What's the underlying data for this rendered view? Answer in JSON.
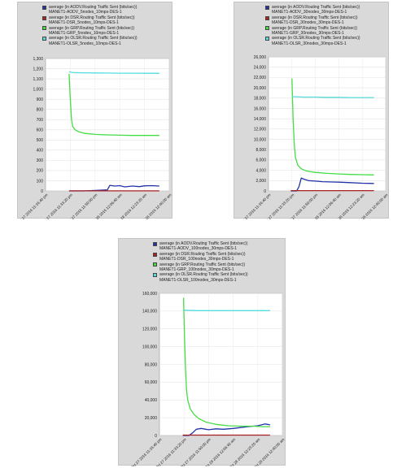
{
  "chart_data": [
    {
      "type": "line",
      "title": "",
      "xlabel": "",
      "ylabel": "",
      "ylim": [
        0,
        1300
      ],
      "yticks": [
        0,
        100,
        200,
        300,
        400,
        500,
        600,
        700,
        800,
        900,
        1000,
        1100,
        1200,
        1300
      ],
      "ytick_labels": [
        "0",
        "100",
        "200",
        "300",
        "400",
        "500",
        "600",
        "700",
        "800",
        "900",
        "1,000",
        "1,100",
        "1,200",
        "1,300"
      ],
      "xtick_labels": [
        "Oct 27 2016 11:16:40 pm",
        "Oct 27 2016 11:33:20 pm",
        "Oct 27 2016 11:50:00 pm",
        "Oct 28 2016 12:06:40 am",
        "Oct 28 2016 12:23:20 am",
        "Oct 28 2016 12:40:00 am"
      ],
      "xlim": [
        0,
        5
      ],
      "grid": true,
      "legend_position": "top",
      "series": [
        {
          "name": "average (in AODV.Routing Traffic Sent (bits/sec))",
          "run": "MANET1-AODV_5nodes_10mps-DES-1",
          "color": "#2233aa",
          "x": [
            0.95,
            1.5,
            2.0,
            2.5,
            2.6,
            2.8,
            3.0,
            3.2,
            3.5,
            3.8,
            4.0,
            4.3,
            4.6
          ],
          "y": [
            0,
            0,
            5,
            10,
            55,
            48,
            52,
            40,
            48,
            42,
            50,
            52,
            48
          ]
        },
        {
          "name": "average (in DSR.Routing Traffic Sent (bits/sec))",
          "run": "MANET1-DSR_5nodes_10mps-DES-1",
          "color": "#aa2222",
          "x": [
            0.95,
            4.6
          ],
          "y": [
            1,
            1
          ]
        },
        {
          "name": "average (in GRP.Routing Traffic Sent (bits/sec))",
          "run": "MANET1-GRP_5nodes_10mps-DES-1",
          "color": "#44dd44",
          "x": [
            0.95,
            1.0,
            1.05,
            1.1,
            1.2,
            1.35,
            1.6,
            2.0,
            2.5,
            3.0,
            3.5,
            4.0,
            4.6
          ],
          "y": [
            1150,
            900,
            700,
            630,
            600,
            580,
            565,
            555,
            550,
            547,
            545,
            545,
            545
          ]
        },
        {
          "name": "average (in OLSR.Routing Traffic Sent (bits/sec))",
          "run": "MANET1-OLSR_5nodes_10mps-DES-1",
          "color": "#55dddd",
          "x": [
            0.95,
            1.1,
            1.5,
            2.0,
            2.5,
            3.0,
            3.5,
            4.0,
            4.6
          ],
          "y": [
            1170,
            1162,
            1160,
            1158,
            1157,
            1156,
            1156,
            1155,
            1155
          ]
        }
      ]
    },
    {
      "type": "line",
      "title": "",
      "xlabel": "",
      "ylabel": "",
      "ylim": [
        0,
        26000
      ],
      "yticks": [
        0,
        2000,
        4000,
        6000,
        8000,
        10000,
        12000,
        14000,
        16000,
        18000,
        20000,
        22000,
        24000,
        26000
      ],
      "ytick_labels": [
        "0",
        "2,000",
        "4,000",
        "6,000",
        "8,000",
        "10,000",
        "12,000",
        "14,000",
        "16,000",
        "18,000",
        "20,000",
        "22,000",
        "24,000",
        "26,000"
      ],
      "xtick_labels": [
        "Oct 27 2016 11:16:40 pm",
        "Oct 27 2016 11:33:20 pm",
        "Oct 27 2016 11:50:00 pm",
        "Oct 28 2016 12:06:40 am",
        "Oct 28 2016 12:23:20 am",
        "Oct 28 2016 12:40:00 am"
      ],
      "xlim": [
        0,
        5
      ],
      "grid": true,
      "legend_position": "top",
      "series": [
        {
          "name": "average (in AODV.Routing Traffic Sent (bits/sec))",
          "run": "MANET1-AODV_30nodes_30mps-DES-1",
          "color": "#2233aa",
          "x": [
            0.95,
            1.2,
            1.3,
            1.4,
            1.5,
            1.7,
            2.0,
            2.3,
            2.6,
            3.0,
            3.5,
            4.0,
            4.5
          ],
          "y": [
            0,
            0,
            800,
            2500,
            2300,
            2000,
            1900,
            1800,
            1750,
            1700,
            1600,
            1500,
            1450
          ]
        },
        {
          "name": "average (in DSR.Routing Traffic Sent (bits/sec))",
          "run": "MANET1-DSR_30nodes_30mps-DES-1",
          "color": "#aa2222",
          "x": [
            0.95,
            4.5
          ],
          "y": [
            60,
            60
          ]
        },
        {
          "name": "average (in GRP.Routing Traffic Sent (bits/sec))",
          "run": "MANET1-GRP_30nodes_30mps-DES-1",
          "color": "#44dd44",
          "x": [
            1.0,
            1.05,
            1.1,
            1.15,
            1.25,
            1.4,
            1.6,
            2.0,
            2.5,
            3.0,
            3.5,
            4.0,
            4.5
          ],
          "y": [
            21800,
            14000,
            9000,
            6500,
            5000,
            4300,
            3900,
            3600,
            3400,
            3300,
            3200,
            3150,
            3100
          ]
        },
        {
          "name": "average (in OLSR.Routing Traffic Sent (bits/sec))",
          "run": "MANET1-OLSR_30nodes_30mps-DES-1",
          "color": "#55dddd",
          "x": [
            1.0,
            1.5,
            2.0,
            2.5,
            3.0,
            3.5,
            4.0,
            4.5
          ],
          "y": [
            18300,
            18200,
            18200,
            18150,
            18150,
            18100,
            18100,
            18100
          ]
        }
      ]
    },
    {
      "type": "line",
      "title": "",
      "xlabel": "",
      "ylabel": "",
      "ylim": [
        0,
        160000
      ],
      "yticks": [
        0,
        20000,
        40000,
        60000,
        80000,
        100000,
        120000,
        140000,
        160000
      ],
      "ytick_labels": [
        "0",
        "20,000",
        "40,000",
        "60,000",
        "80,000",
        "100,000",
        "120,000",
        "140,000",
        "160,000"
      ],
      "xtick_labels": [
        "Oct 27 2016 11:16:40 pm",
        "Oct 27 2016 11:33:20 pm",
        "Oct 27 2016 11:50:00 pm",
        "Oct 28 2016 12:06:40 am",
        "Oct 28 2016 12:23:20 am",
        "Oct 28 2016 12:40:00 am"
      ],
      "xlim": [
        0,
        5
      ],
      "grid": true,
      "legend_position": "top",
      "series": [
        {
          "name": "average (in AODV.Routing Traffic Sent (bits/sec))",
          "run": "MANET1-AODV_100nodes_30mps-DES-1",
          "color": "#2233aa",
          "x": [
            0.95,
            1.2,
            1.35,
            1.5,
            1.7,
            2.0,
            2.3,
            2.6,
            3.0,
            3.3,
            3.6,
            4.0,
            4.3,
            4.5
          ],
          "y": [
            0,
            0,
            3000,
            7000,
            8000,
            6500,
            7500,
            7000,
            8000,
            9000,
            10000,
            11000,
            13000,
            12000
          ]
        },
        {
          "name": "average (in DSR.Routing Traffic Sent (bits/sec))",
          "run": "MANET1-DSR_100nodes_30mps-DES-1",
          "color": "#aa2222",
          "x": [
            0.95,
            4.5
          ],
          "y": [
            500,
            500
          ]
        },
        {
          "name": "average (in GRP.Routing Traffic Sent (bits/sec))",
          "run": "MANET1-GRP_100nodes_30mps-DES-1",
          "color": "#44dd44",
          "x": [
            0.98,
            1.02,
            1.06,
            1.1,
            1.15,
            1.25,
            1.4,
            1.6,
            1.9,
            2.3,
            2.8,
            3.3,
            3.8,
            4.2,
            4.5
          ],
          "y": [
            155000,
            110000,
            75000,
            52000,
            40000,
            30000,
            24000,
            19000,
            15000,
            12500,
            11000,
            10500,
            10500,
            10000,
            10000
          ]
        },
        {
          "name": "average (in OLSR.Routing Traffic Sent (bits/sec))",
          "run": "MANET1-OLSR_100nodes_30mps-DES-1",
          "color": "#55dddd",
          "x": [
            1.0,
            1.5,
            2.0,
            2.5,
            3.0,
            3.5,
            4.0,
            4.5
          ],
          "y": [
            141000,
            140500,
            140500,
            140500,
            140500,
            140500,
            140500,
            140500
          ]
        }
      ]
    }
  ]
}
